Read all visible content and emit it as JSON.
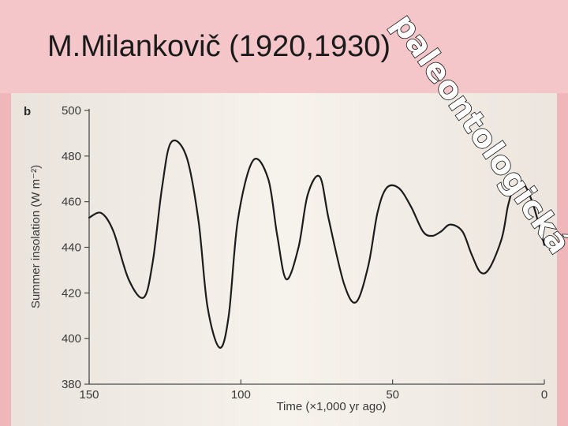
{
  "slide": {
    "title": "M.Milankovič (1920,1930)",
    "stamp_text": "paleontologická"
  },
  "chart_data": {
    "type": "line",
    "panel_label": "b",
    "xlabel": "Time (×1,000 yr ago)",
    "ylabel": "Summer insolation (W m⁻²)",
    "xlim": [
      150,
      0
    ],
    "ylim": [
      380,
      500
    ],
    "x_ticks": [
      150,
      100,
      50,
      0
    ],
    "y_ticks": [
      380,
      400,
      420,
      440,
      460,
      480,
      500
    ],
    "series": [
      {
        "color": "#1c1c1c",
        "x": [
          150,
          146,
          142,
          137,
          132,
          129,
          126,
          123,
          118,
          114,
          111,
          107,
          104,
          101,
          96,
          91,
          88,
          85,
          81,
          78,
          74,
          71,
          66,
          62,
          58,
          55,
          52,
          48,
          44,
          40,
          37,
          34,
          31,
          27,
          24,
          21,
          18,
          14,
          12,
          10,
          7,
          4,
          1,
          0
        ],
        "y": [
          453,
          455,
          447,
          426,
          418,
          434,
          466,
          486,
          480,
          452,
          414,
          396,
          410,
          452,
          478,
          470,
          445,
          426,
          440,
          463,
          471,
          452,
          424,
          416,
          432,
          455,
          466,
          466,
          458,
          447,
          445,
          447,
          450,
          447,
          437,
          429,
          431,
          444,
          458,
          466,
          468,
          460,
          446,
          441
        ]
      }
    ]
  }
}
